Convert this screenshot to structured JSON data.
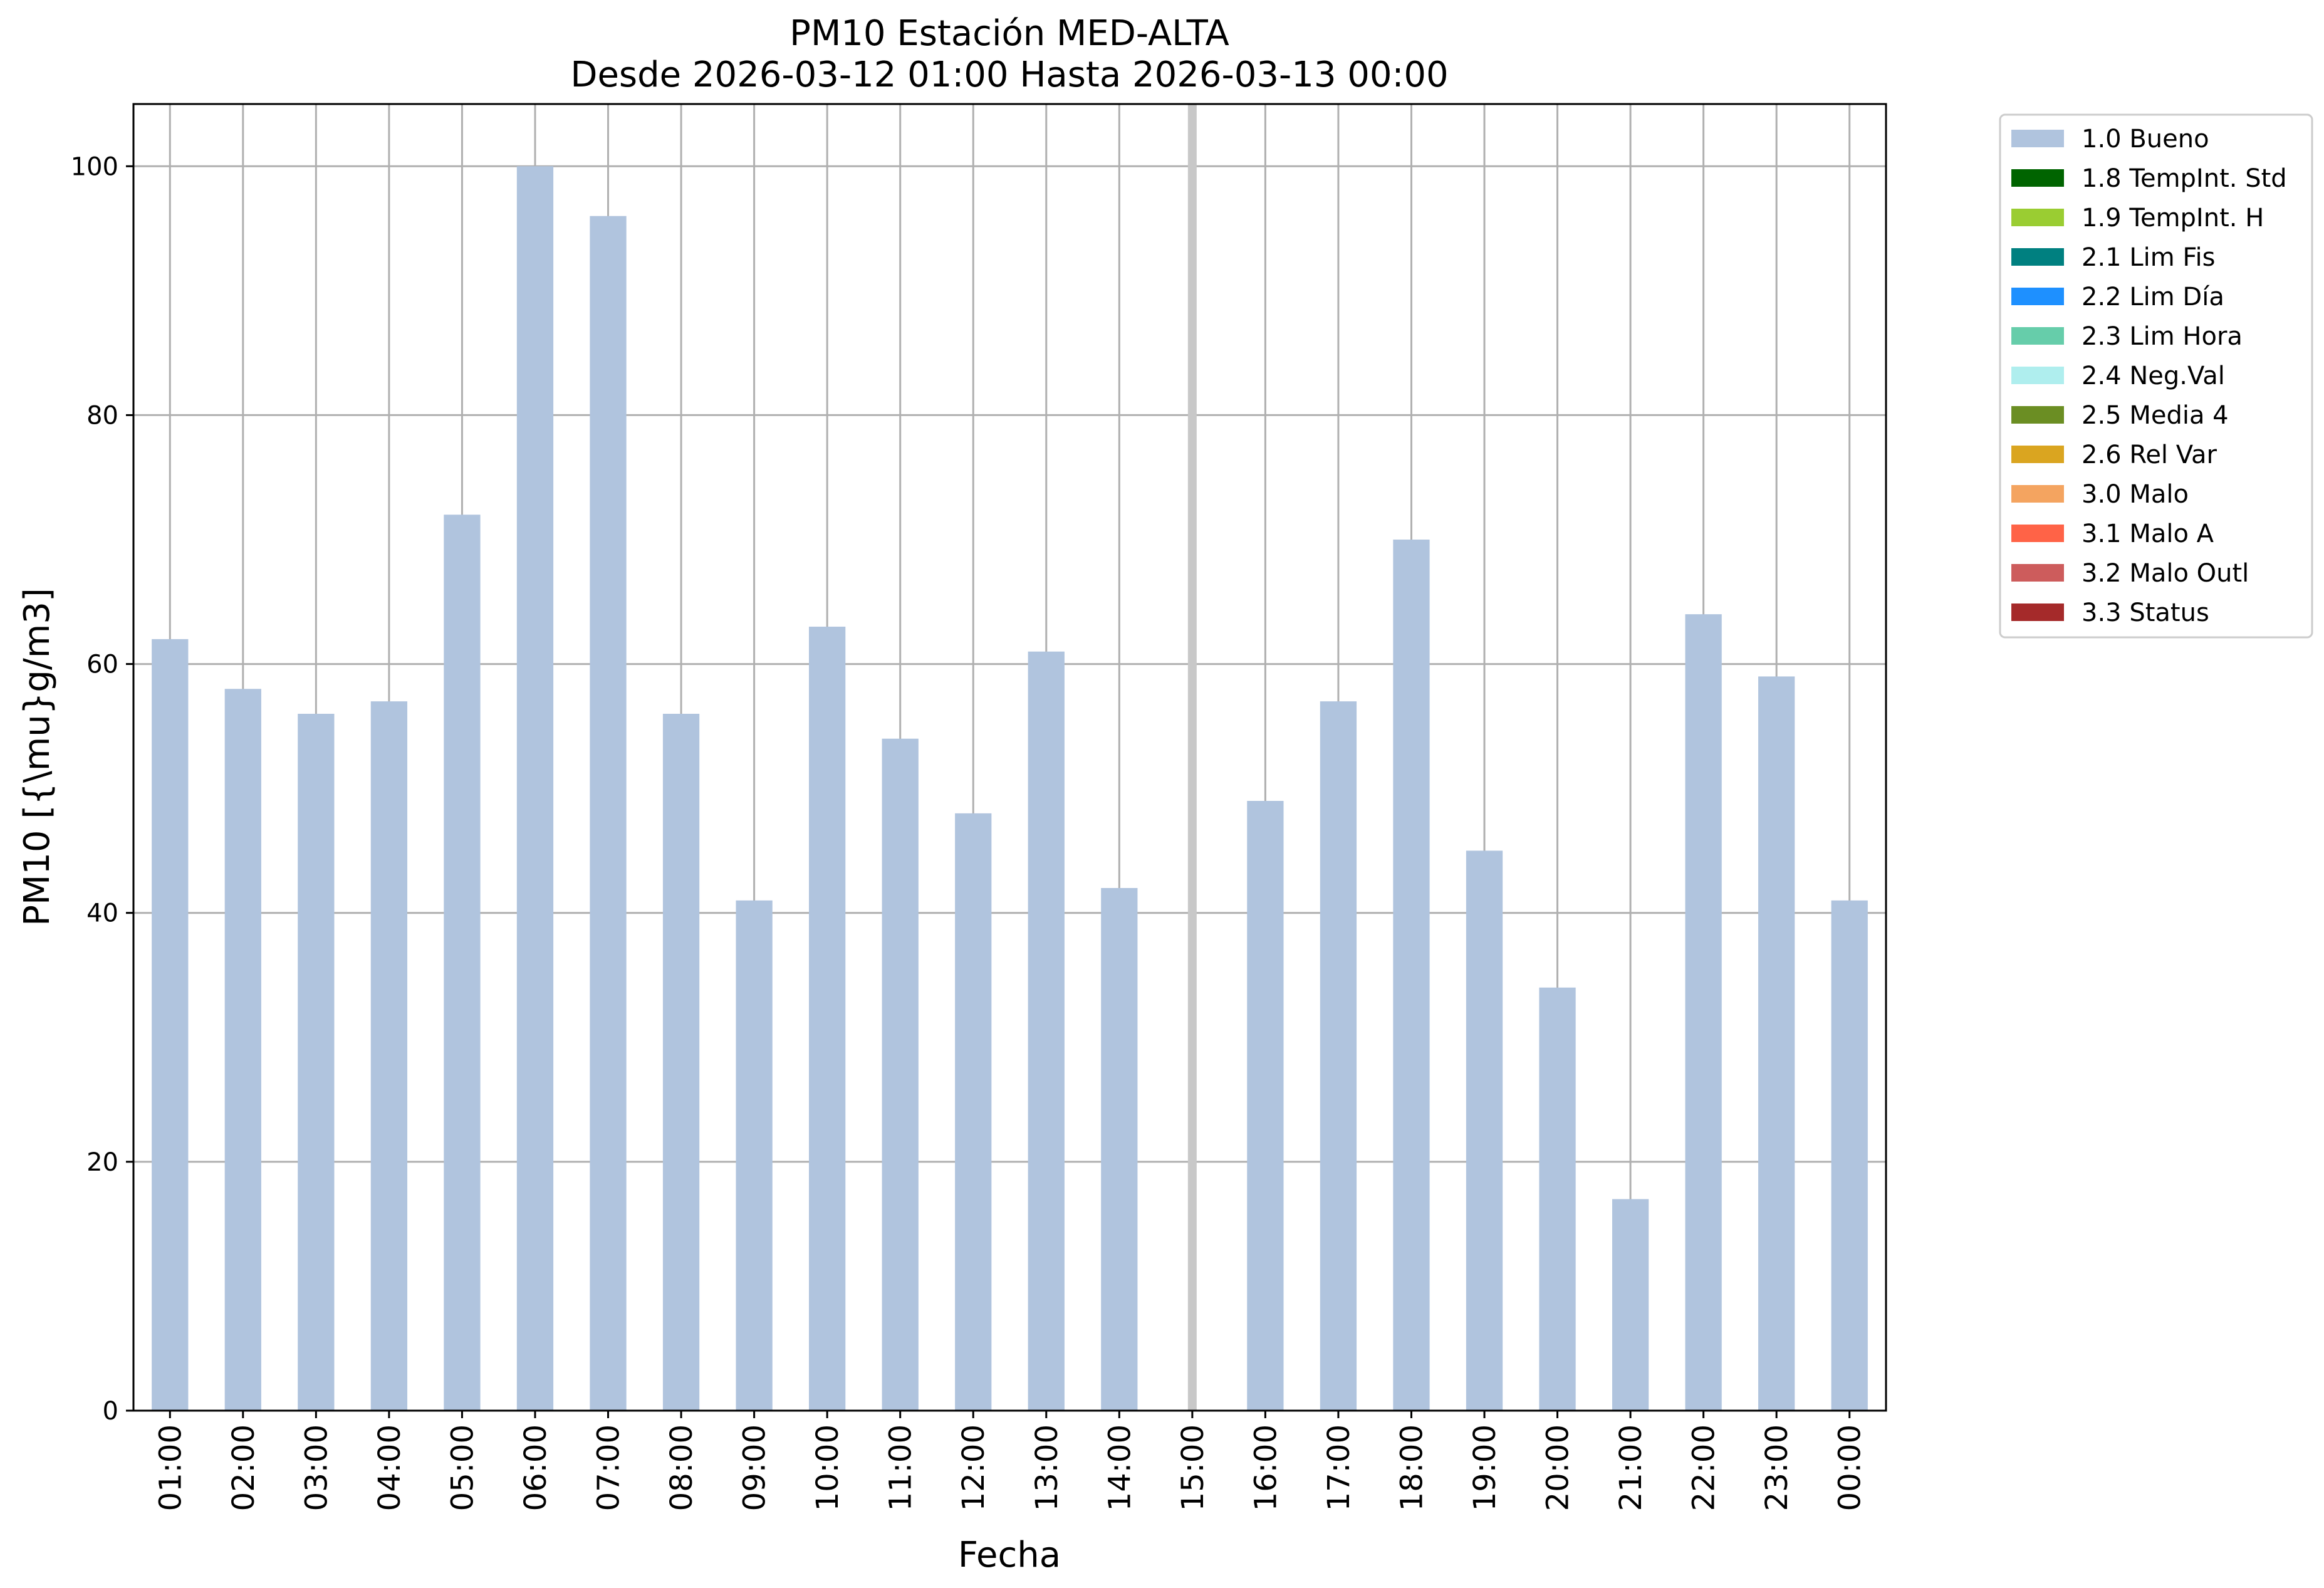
{
  "chart_data": {
    "type": "bar",
    "title_lines": [
      "PM10 Estación MED-ALTA",
      "Desde 2026-03-12 01:00 Hasta 2026-03-13 00:00"
    ],
    "xlabel": "Fecha",
    "ylabel": "PM10 [{\\mu}g/m3]",
    "ylim": [
      0,
      105
    ],
    "yticks": [
      0,
      20,
      40,
      60,
      80,
      100
    ],
    "grid": true,
    "legend_position": "outside-top-right",
    "categories": [
      "01:00",
      "02:00",
      "03:00",
      "04:00",
      "05:00",
      "06:00",
      "07:00",
      "08:00",
      "09:00",
      "10:00",
      "11:00",
      "12:00",
      "13:00",
      "14:00",
      "15:00",
      "16:00",
      "17:00",
      "18:00",
      "19:00",
      "20:00",
      "21:00",
      "22:00",
      "23:00",
      "00:00"
    ],
    "series": [
      {
        "name": "1.0 Bueno",
        "color": "#b0c4de",
        "values": [
          62,
          58,
          56,
          57,
          72,
          100,
          96,
          56,
          41,
          63,
          54,
          48,
          61,
          42,
          null,
          49,
          57,
          70,
          45,
          34,
          17,
          64,
          59,
          41
        ]
      }
    ],
    "missing_marker": {
      "category": "15:00",
      "color": "#c8c8c8"
    },
    "legend": [
      {
        "label": "1.0 Bueno",
        "color": "#b0c4de"
      },
      {
        "label": "1.8 TempInt. Std",
        "color": "#006400"
      },
      {
        "label": "1.9 TempInt. H",
        "color": "#9acd32"
      },
      {
        "label": "2.1 Lim Fis",
        "color": "#008080"
      },
      {
        "label": "2.2 Lim Día",
        "color": "#1e90ff"
      },
      {
        "label": "2.3 Lim Hora",
        "color": "#66cdaa"
      },
      {
        "label": "2.4 Neg.Val",
        "color": "#afeeee"
      },
      {
        "label": "2.5 Media 4",
        "color": "#6b8e23"
      },
      {
        "label": "2.6 Rel Var",
        "color": "#daa520"
      },
      {
        "label": "3.0 Malo",
        "color": "#f4a460"
      },
      {
        "label": "3.1 Malo A",
        "color": "#ff6347"
      },
      {
        "label": "3.2 Malo Outl",
        "color": "#cd5c5c"
      },
      {
        "label": "3.3 Status",
        "color": "#a52a2a"
      }
    ]
  }
}
